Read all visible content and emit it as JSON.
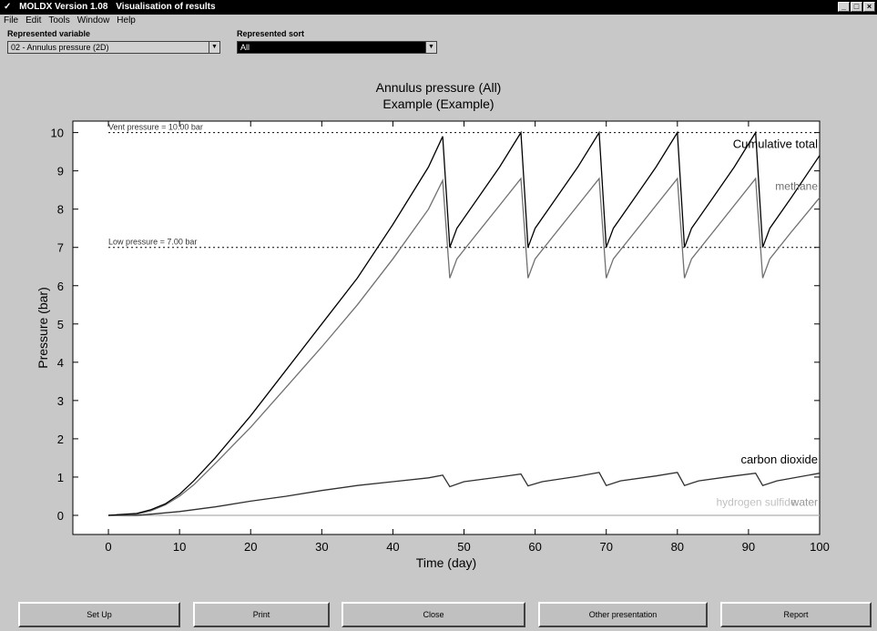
{
  "window": {
    "app_title": "MOLDX Version 1.08",
    "subtitle": "Visualisation of results",
    "icon": "app-logo-icon",
    "controls": [
      "minimize-icon",
      "maximize-icon",
      "close-icon"
    ]
  },
  "menu": [
    "File",
    "Edit",
    "Tools",
    "Window",
    "Help"
  ],
  "controls": {
    "variable_label": "Represented variable",
    "variable_value": "02 - Annulus pressure (2D)",
    "sort_label": "Represented sort",
    "sort_value": "All"
  },
  "plot": {
    "title_line1": "Annulus pressure (All)",
    "title_line2": "Example (Example)"
  },
  "chart_data": {
    "type": "line",
    "title": "Annulus pressure (All)",
    "subtitle": "Example (Example)",
    "xlabel": "Time (day)",
    "ylabel": "Pressure (bar)",
    "xlim": [
      -5,
      100
    ],
    "ylim": [
      -0.5,
      10.3
    ],
    "xticks": [
      0,
      10,
      20,
      30,
      40,
      50,
      60,
      70,
      80,
      90,
      100
    ],
    "yticks": [
      0,
      1,
      2,
      3,
      4,
      5,
      6,
      7,
      8,
      9,
      10
    ],
    "grid": false,
    "reference_lines": [
      {
        "label": "Vent pressure = 10.00 bar",
        "y": 10
      },
      {
        "label": "Low pressure = 7.00 bar",
        "y": 7
      }
    ],
    "series": [
      {
        "name": "Cumulative total",
        "color": "#000000",
        "points": [
          [
            0,
            0
          ],
          [
            4,
            0.05
          ],
          [
            6,
            0.15
          ],
          [
            8,
            0.3
          ],
          [
            10,
            0.55
          ],
          [
            12,
            0.9
          ],
          [
            15,
            1.5
          ],
          [
            20,
            2.6
          ],
          [
            25,
            3.8
          ],
          [
            30,
            5.0
          ],
          [
            35,
            6.2
          ],
          [
            40,
            7.6
          ],
          [
            45,
            9.1
          ],
          [
            47,
            9.9
          ],
          [
            48,
            7.0
          ],
          [
            49,
            7.5
          ],
          [
            52,
            8.3
          ],
          [
            55,
            9.1
          ],
          [
            58,
            10.0
          ],
          [
            59,
            7.0
          ],
          [
            60,
            7.5
          ],
          [
            63,
            8.3
          ],
          [
            66,
            9.1
          ],
          [
            69,
            10.0
          ],
          [
            70,
            7.0
          ],
          [
            71,
            7.5
          ],
          [
            74,
            8.3
          ],
          [
            77,
            9.1
          ],
          [
            80,
            10.0
          ],
          [
            81,
            7.0
          ],
          [
            82,
            7.5
          ],
          [
            85,
            8.3
          ],
          [
            88,
            9.1
          ],
          [
            91,
            10.0
          ],
          [
            92,
            7.0
          ],
          [
            93,
            7.5
          ],
          [
            96,
            8.3
          ],
          [
            100,
            9.4
          ]
        ]
      },
      {
        "name": "methane",
        "color": "#707070",
        "points": [
          [
            0,
            0
          ],
          [
            4,
            0.03
          ],
          [
            6,
            0.12
          ],
          [
            8,
            0.27
          ],
          [
            10,
            0.5
          ],
          [
            12,
            0.8
          ],
          [
            15,
            1.35
          ],
          [
            20,
            2.3
          ],
          [
            25,
            3.35
          ],
          [
            30,
            4.4
          ],
          [
            35,
            5.5
          ],
          [
            40,
            6.7
          ],
          [
            45,
            8.0
          ],
          [
            47,
            8.75
          ],
          [
            48,
            6.2
          ],
          [
            49,
            6.7
          ],
          [
            52,
            7.4
          ],
          [
            55,
            8.1
          ],
          [
            58,
            8.8
          ],
          [
            59,
            6.2
          ],
          [
            60,
            6.7
          ],
          [
            63,
            7.4
          ],
          [
            66,
            8.1
          ],
          [
            69,
            8.8
          ],
          [
            70,
            6.2
          ],
          [
            71,
            6.7
          ],
          [
            74,
            7.4
          ],
          [
            77,
            8.1
          ],
          [
            80,
            8.8
          ],
          [
            81,
            6.2
          ],
          [
            82,
            6.7
          ],
          [
            85,
            7.4
          ],
          [
            88,
            8.1
          ],
          [
            91,
            8.8
          ],
          [
            92,
            6.2
          ],
          [
            93,
            6.7
          ],
          [
            96,
            7.4
          ],
          [
            100,
            8.3
          ]
        ]
      },
      {
        "name": "carbon dioxide",
        "color": "#303030",
        "points": [
          [
            0,
            0
          ],
          [
            4,
            0.0
          ],
          [
            6,
            0.03
          ],
          [
            10,
            0.1
          ],
          [
            15,
            0.22
          ],
          [
            20,
            0.37
          ],
          [
            25,
            0.5
          ],
          [
            30,
            0.65
          ],
          [
            35,
            0.78
          ],
          [
            40,
            0.88
          ],
          [
            45,
            0.98
          ],
          [
            47,
            1.05
          ],
          [
            48,
            0.75
          ],
          [
            50,
            0.88
          ],
          [
            55,
            1.0
          ],
          [
            58,
            1.08
          ],
          [
            59,
            0.77
          ],
          [
            61,
            0.88
          ],
          [
            66,
            1.02
          ],
          [
            69,
            1.12
          ],
          [
            70,
            0.78
          ],
          [
            72,
            0.9
          ],
          [
            77,
            1.03
          ],
          [
            80,
            1.12
          ],
          [
            81,
            0.78
          ],
          [
            83,
            0.9
          ],
          [
            88,
            1.03
          ],
          [
            91,
            1.1
          ],
          [
            92,
            0.78
          ],
          [
            94,
            0.9
          ],
          [
            100,
            1.1
          ]
        ]
      },
      {
        "name": "hydrogen sulfide",
        "color": "#b4b4b4",
        "points": [
          [
            0,
            0
          ],
          [
            100,
            0
          ]
        ]
      },
      {
        "name": "water",
        "color": "#e0e0e0",
        "points": [
          [
            0,
            0
          ],
          [
            100,
            0
          ]
        ]
      }
    ],
    "annotations": [
      {
        "text": "Cumulative total",
        "x": 100,
        "y": 9.6
      },
      {
        "text": "methane",
        "x": 100,
        "y": 8.5
      },
      {
        "text": "carbon dioxide",
        "x": 100,
        "y": 1.35
      },
      {
        "text": "hydrogen sulfide",
        "x": 97,
        "y": 0.25
      },
      {
        "text": "water",
        "x": 100,
        "y": 0.25
      }
    ]
  },
  "buttons": [
    "Set Up",
    "Print",
    "Close",
    "Other presentation",
    "Report"
  ]
}
